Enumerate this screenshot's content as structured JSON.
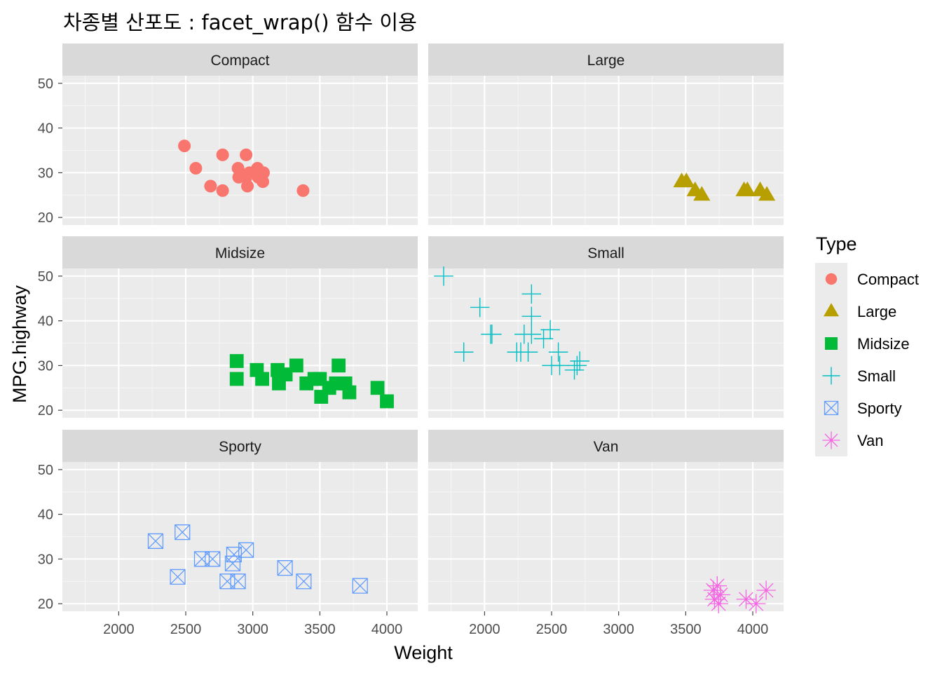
{
  "chart_data": {
    "type": "scatter",
    "title": "차종별 산포도 : facet_wrap() 함수 이용",
    "xlabel": "Weight",
    "ylabel": "MPG.highway",
    "xlim": [
      1580,
      4230
    ],
    "ylim": [
      18.3,
      51.7
    ],
    "x_ticks": [
      "2000",
      "2500",
      "3000",
      "3500",
      "4000"
    ],
    "y_ticks": [
      "20",
      "30",
      "40",
      "50"
    ],
    "grid": true,
    "legend": {
      "title": "Type",
      "placement": "right"
    },
    "facets": [
      "Compact",
      "Large",
      "Midsize",
      "Small",
      "Sporty",
      "Van"
    ],
    "series": [
      {
        "name": "Compact",
        "color": "#F8766D",
        "shape": "circle",
        "points": [
          [
            2490,
            36
          ],
          [
            2575,
            31
          ],
          [
            2685,
            27
          ],
          [
            2775,
            34
          ],
          [
            2775,
            26
          ],
          [
            2890,
            31
          ],
          [
            2895,
            29
          ],
          [
            2950,
            34
          ],
          [
            2950,
            29
          ],
          [
            2960,
            27
          ],
          [
            2975,
            30
          ],
          [
            3035,
            31
          ],
          [
            3040,
            29
          ],
          [
            3075,
            28
          ],
          [
            3080,
            30
          ],
          [
            3375,
            26
          ]
        ]
      },
      {
        "name": "Large",
        "color": "#B79F00",
        "shape": "triangle",
        "points": [
          [
            3470,
            28
          ],
          [
            3505,
            28
          ],
          [
            3570,
            26
          ],
          [
            3620,
            25
          ],
          [
            3935,
            26
          ],
          [
            3960,
            26
          ],
          [
            4055,
            26
          ],
          [
            4105,
            25
          ]
        ]
      },
      {
        "name": "Midsize",
        "color": "#00BA38",
        "shape": "square",
        "points": [
          [
            2880,
            31
          ],
          [
            2880,
            27
          ],
          [
            3030,
            29
          ],
          [
            3070,
            27
          ],
          [
            3185,
            29
          ],
          [
            3195,
            26
          ],
          [
            3245,
            28
          ],
          [
            3325,
            30
          ],
          [
            3400,
            26
          ],
          [
            3460,
            27
          ],
          [
            3500,
            27
          ],
          [
            3510,
            23
          ],
          [
            3570,
            25
          ],
          [
            3620,
            26
          ],
          [
            3640,
            30
          ],
          [
            3690,
            26
          ],
          [
            3720,
            24
          ],
          [
            3930,
            25
          ],
          [
            4000,
            22
          ]
        ]
      },
      {
        "name": "Small",
        "color": "#00BFC4",
        "shape": "plus",
        "points": [
          [
            1695,
            50
          ],
          [
            1845,
            33
          ],
          [
            1965,
            43
          ],
          [
            2045,
            37
          ],
          [
            2055,
            37
          ],
          [
            2240,
            33
          ],
          [
            2270,
            33
          ],
          [
            2295,
            37
          ],
          [
            2325,
            33
          ],
          [
            2350,
            46
          ],
          [
            2350,
            41
          ],
          [
            2350,
            37
          ],
          [
            2440,
            36
          ],
          [
            2490,
            38
          ],
          [
            2500,
            30
          ],
          [
            2550,
            33
          ],
          [
            2560,
            30
          ],
          [
            2670,
            29
          ],
          [
            2690,
            30
          ],
          [
            2710,
            31
          ]
        ]
      },
      {
        "name": "Sporty",
        "color": "#619CFF",
        "shape": "square-x",
        "points": [
          [
            2275,
            34
          ],
          [
            2440,
            26
          ],
          [
            2475,
            36
          ],
          [
            2620,
            30
          ],
          [
            2700,
            30
          ],
          [
            2810,
            25
          ],
          [
            2850,
            29
          ],
          [
            2860,
            31
          ],
          [
            2890,
            25
          ],
          [
            2950,
            32
          ],
          [
            3240,
            28
          ],
          [
            3380,
            25
          ],
          [
            3800,
            24
          ]
        ]
      },
      {
        "name": "Van",
        "color": "#F564E3",
        "shape": "asterisk",
        "points": [
          [
            3705,
            23
          ],
          [
            3715,
            21
          ],
          [
            3735,
            24
          ],
          [
            3745,
            20
          ],
          [
            3760,
            22
          ],
          [
            3950,
            21
          ],
          [
            4025,
            20
          ],
          [
            4100,
            23
          ]
        ]
      }
    ]
  }
}
